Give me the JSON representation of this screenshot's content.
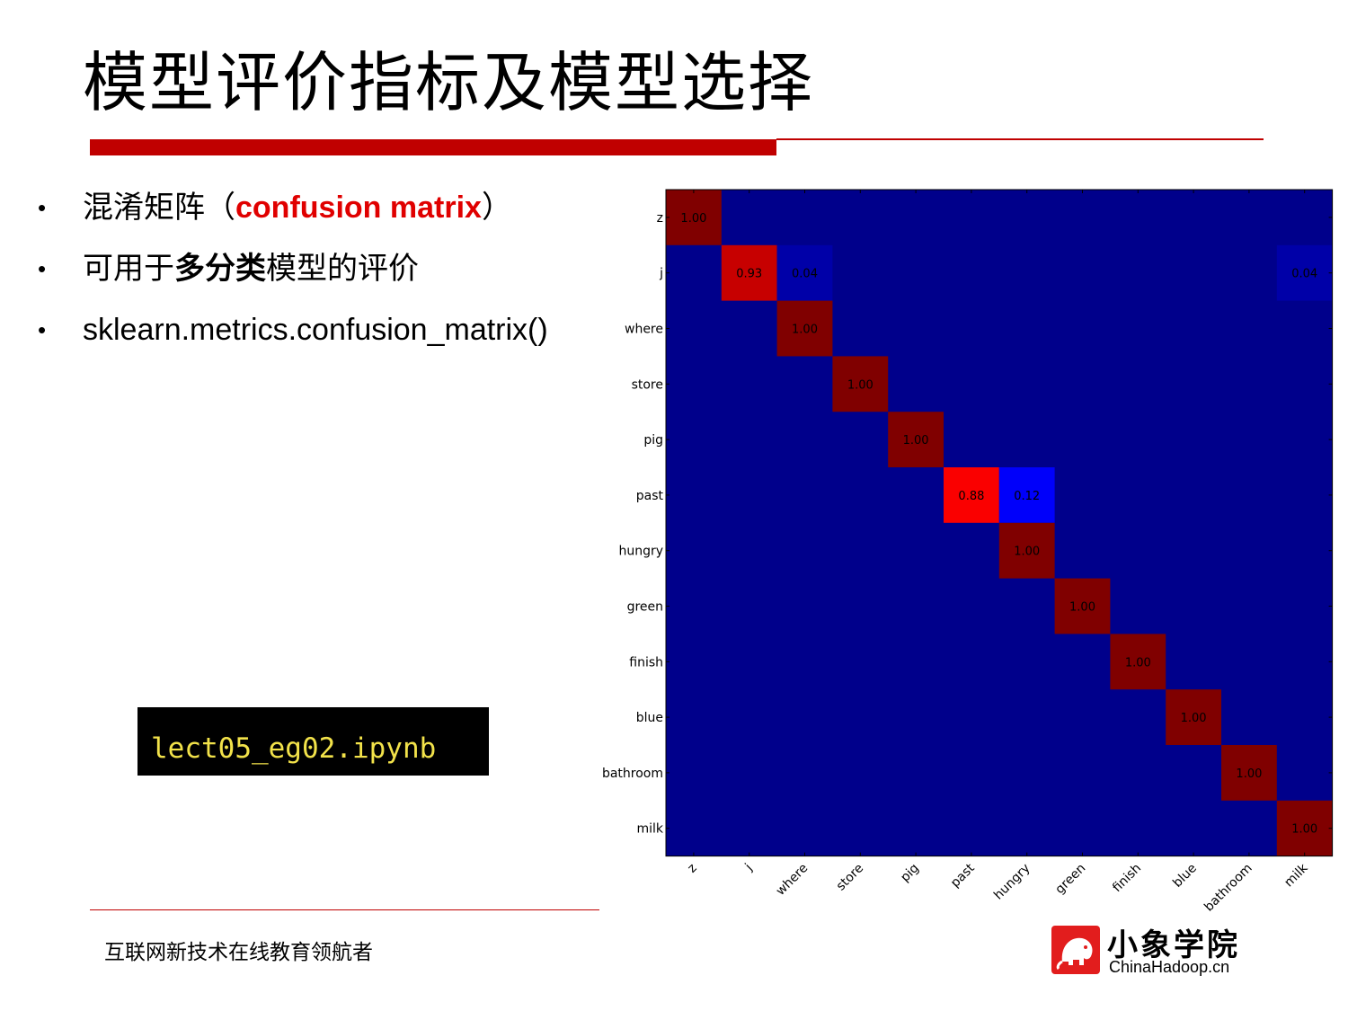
{
  "slide": {
    "title": "模型评价指标及模型选择",
    "bullets": [
      {
        "dot": "•",
        "pre": "混淆矩阵（",
        "highlight": "confusion matrix",
        "post": "）"
      },
      {
        "dot": "•",
        "pre": "可用于",
        "highlight": "多分类",
        "post": "模型的评价"
      },
      {
        "dot": "•",
        "text": "sklearn.metrics.confusion_matrix()"
      }
    ],
    "code_filename": "lect05_eg02.ipynb",
    "footer": "互联网新技术在线教育领航者",
    "logo": {
      "name_cn": "小象学院",
      "domain": "ChinaHadoop.cn",
      "icon": "elephant-icon"
    }
  },
  "chart_data": {
    "type": "heatmap",
    "title": "",
    "xlabel": "",
    "ylabel": "",
    "labels": [
      "z",
      "j",
      "where",
      "store",
      "pig",
      "past",
      "hungry",
      "green",
      "finish",
      "blue",
      "bathroom",
      "milk"
    ],
    "colormap": "jet",
    "value_range": [
      0,
      1
    ],
    "background_color": "#00008b",
    "cells": [
      {
        "row": 0,
        "col": 0,
        "value": 1.0,
        "label": "1.00"
      },
      {
        "row": 1,
        "col": 1,
        "value": 0.93,
        "label": "0.93"
      },
      {
        "row": 1,
        "col": 2,
        "value": 0.04,
        "label": "0.04"
      },
      {
        "row": 1,
        "col": 11,
        "value": 0.04,
        "label": "0.04"
      },
      {
        "row": 2,
        "col": 2,
        "value": 1.0,
        "label": "1.00"
      },
      {
        "row": 3,
        "col": 3,
        "value": 1.0,
        "label": "1.00"
      },
      {
        "row": 4,
        "col": 4,
        "value": 1.0,
        "label": "1.00"
      },
      {
        "row": 5,
        "col": 5,
        "value": 0.88,
        "label": "0.88"
      },
      {
        "row": 5,
        "col": 6,
        "value": 0.12,
        "label": "0.12"
      },
      {
        "row": 6,
        "col": 6,
        "value": 1.0,
        "label": "1.00"
      },
      {
        "row": 7,
        "col": 7,
        "value": 1.0,
        "label": "1.00"
      },
      {
        "row": 8,
        "col": 8,
        "value": 1.0,
        "label": "1.00"
      },
      {
        "row": 9,
        "col": 9,
        "value": 1.0,
        "label": "1.00"
      },
      {
        "row": 10,
        "col": 10,
        "value": 1.0,
        "label": "1.00"
      },
      {
        "row": 11,
        "col": 11,
        "value": 1.0,
        "label": "1.00"
      }
    ]
  }
}
